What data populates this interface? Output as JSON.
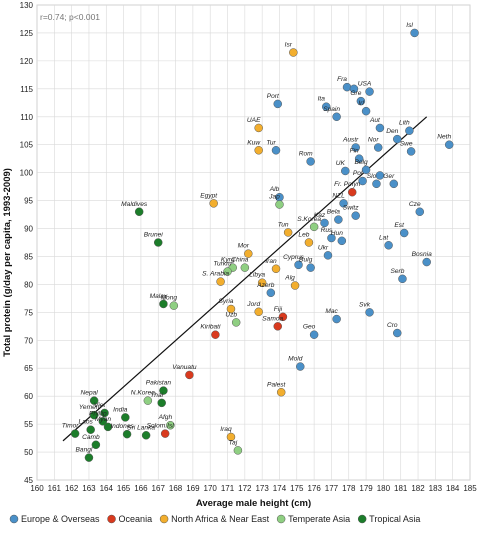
{
  "chart_data": {
    "type": "scatter",
    "title": "",
    "xlabel": "Average male height (cm)",
    "ylabel": "Total protein (g/day per capita, 1993-2009)",
    "annotation": "r=0.74; p<0.001",
    "xlim": [
      160,
      185
    ],
    "ylim": [
      45,
      130
    ],
    "xticks": [
      160,
      161,
      162,
      163,
      164,
      165,
      166,
      167,
      168,
      169,
      170,
      171,
      172,
      173,
      174,
      175,
      176,
      177,
      178,
      179,
      180,
      181,
      182,
      183,
      184,
      185
    ],
    "yticks": [
      45,
      50,
      55,
      60,
      65,
      70,
      75,
      80,
      85,
      90,
      95,
      100,
      105,
      110,
      115,
      120,
      125,
      130
    ],
    "grid": true,
    "legend_position": "bottom",
    "trendline": {
      "x": [
        161.5,
        182.5
      ],
      "y": [
        52,
        110
      ]
    },
    "series": [
      {
        "name": "Europe & Overseas",
        "color": "#4a90c8",
        "points": [
          {
            "x": 181.8,
            "y": 125,
            "label": "Isl"
          },
          {
            "x": 177.9,
            "y": 115.3,
            "label": "Fra"
          },
          {
            "x": 178.3,
            "y": 115,
            "label": ""
          },
          {
            "x": 179.2,
            "y": 114.5,
            "label": "USA"
          },
          {
            "x": 176.7,
            "y": 111.8,
            "label": "Ita"
          },
          {
            "x": 178.7,
            "y": 112.8,
            "label": "Gre"
          },
          {
            "x": 179,
            "y": 111,
            "label": "Irl"
          },
          {
            "x": 177.3,
            "y": 110,
            "label": "Spain"
          },
          {
            "x": 173.9,
            "y": 112.3,
            "label": "Port"
          },
          {
            "x": 179.8,
            "y": 108,
            "label": "Aut"
          },
          {
            "x": 180.8,
            "y": 106,
            "label": "Den"
          },
          {
            "x": 181.5,
            "y": 107.5,
            "label": "Lith"
          },
          {
            "x": 178.4,
            "y": 104.5,
            "label": "Austr"
          },
          {
            "x": 179.7,
            "y": 104.5,
            "label": "Nor"
          },
          {
            "x": 181.6,
            "y": 103.8,
            "label": "Swe"
          },
          {
            "x": 183.8,
            "y": 105,
            "label": "Neth"
          },
          {
            "x": 173.8,
            "y": 104,
            "label": "Tur"
          },
          {
            "x": 175.8,
            "y": 102,
            "label": "Rom"
          },
          {
            "x": 178.6,
            "y": 102.5,
            "label": "Fin"
          },
          {
            "x": 177.8,
            "y": 100.3,
            "label": "UK"
          },
          {
            "x": 179,
            "y": 100.5,
            "label": "Belg"
          },
          {
            "x": 179.8,
            "y": 99.5,
            "label": ""
          },
          {
            "x": 178.8,
            "y": 98.5,
            "label": "Pol"
          },
          {
            "x": 179.6,
            "y": 98,
            "label": "Slo"
          },
          {
            "x": 180.6,
            "y": 98,
            "label": "Ger"
          },
          {
            "x": 174,
            "y": 95.6,
            "label": "Alb"
          },
          {
            "x": 177.7,
            "y": 94.5,
            "label": "NZL"
          },
          {
            "x": 182.1,
            "y": 93,
            "label": "Cze"
          },
          {
            "x": 177.4,
            "y": 91.6,
            "label": "Bela"
          },
          {
            "x": 178.4,
            "y": 92.3,
            "label": "Switz"
          },
          {
            "x": 176.6,
            "y": 91,
            "label": "Kaz"
          },
          {
            "x": 177,
            "y": 88.3,
            "label": "Rus"
          },
          {
            "x": 181.2,
            "y": 89.2,
            "label": "Est"
          },
          {
            "x": 177.6,
            "y": 87.8,
            "label": "Hun"
          },
          {
            "x": 175.1,
            "y": 83.5,
            "label": "Cyprus"
          },
          {
            "x": 175.8,
            "y": 83,
            "label": "Bulg"
          },
          {
            "x": 176.8,
            "y": 85.2,
            "label": "Ukr"
          },
          {
            "x": 180.3,
            "y": 87,
            "label": "Lat"
          },
          {
            "x": 182.5,
            "y": 84,
            "label": "Bosnia"
          },
          {
            "x": 181.1,
            "y": 81,
            "label": "Serb"
          },
          {
            "x": 173.5,
            "y": 78.5,
            "label": "Azerb"
          },
          {
            "x": 177.3,
            "y": 73.8,
            "label": "Mac"
          },
          {
            "x": 179.2,
            "y": 75,
            "label": "Svk"
          },
          {
            "x": 176,
            "y": 71,
            "label": "Geo"
          },
          {
            "x": 180.8,
            "y": 71.3,
            "label": "Cro"
          },
          {
            "x": 175.2,
            "y": 65.3,
            "label": "Mold"
          }
        ]
      },
      {
        "name": "Oceania",
        "color": "#d93a1e",
        "points": [
          {
            "x": 178.2,
            "y": 96.5,
            "label": "Fr. Polyn"
          },
          {
            "x": 174.2,
            "y": 74.2,
            "label": "Fiji"
          },
          {
            "x": 173.9,
            "y": 72.5,
            "label": "Samoa"
          },
          {
            "x": 170.3,
            "y": 71,
            "label": "Kiribati"
          },
          {
            "x": 168.8,
            "y": 63.8,
            "label": "Vanuatu"
          },
          {
            "x": 167.4,
            "y": 53.3,
            "label": "Solom.Isl"
          }
        ]
      },
      {
        "name": "North Africa & Near East",
        "color": "#f2ae2e",
        "points": [
          {
            "x": 174.8,
            "y": 121.5,
            "label": "Isr"
          },
          {
            "x": 172.8,
            "y": 108,
            "label": "UAE"
          },
          {
            "x": 172.8,
            "y": 104,
            "label": "Kuw"
          },
          {
            "x": 170.2,
            "y": 94.5,
            "label": "Egypt"
          },
          {
            "x": 174.5,
            "y": 89.3,
            "label": "Tun"
          },
          {
            "x": 172.2,
            "y": 85.5,
            "label": "Mor"
          },
          {
            "x": 175.7,
            "y": 87.5,
            "label": "Leb"
          },
          {
            "x": 173.8,
            "y": 82.8,
            "label": "Iran"
          },
          {
            "x": 170.6,
            "y": 80.5,
            "label": "S. Arabia"
          },
          {
            "x": 173,
            "y": 80.3,
            "label": "Libya"
          },
          {
            "x": 174.9,
            "y": 79.8,
            "label": "Alg"
          },
          {
            "x": 171.2,
            "y": 75.6,
            "label": "Syria"
          },
          {
            "x": 172.8,
            "y": 75.1,
            "label": "Jord"
          },
          {
            "x": 174.1,
            "y": 60.7,
            "label": "Palest"
          },
          {
            "x": 171.2,
            "y": 52.7,
            "label": "Iraq"
          }
        ]
      },
      {
        "name": "Temperate Asia",
        "color": "#8fcf82",
        "points": [
          {
            "x": 174,
            "y": 94.3,
            "label": "Jap"
          },
          {
            "x": 176,
            "y": 90.3,
            "label": "S.Korea"
          },
          {
            "x": 171.3,
            "y": 83,
            "label": "Kyrg"
          },
          {
            "x": 171,
            "y": 82.3,
            "label": "Turkm"
          },
          {
            "x": 172,
            "y": 83,
            "label": "China"
          },
          {
            "x": 167.9,
            "y": 76.2,
            "label": "Mong"
          },
          {
            "x": 171.5,
            "y": 73.2,
            "label": "Uzb"
          },
          {
            "x": 166.4,
            "y": 59.2,
            "label": "N.Korea"
          },
          {
            "x": 167.7,
            "y": 54.8,
            "label": "Afgh"
          },
          {
            "x": 171.6,
            "y": 50.3,
            "label": "Taj"
          }
        ]
      },
      {
        "name": "Tropical Asia",
        "color": "#1c7d2a",
        "points": [
          {
            "x": 165.9,
            "y": 93,
            "label": "Maldives"
          },
          {
            "x": 167,
            "y": 87.5,
            "label": "Brunei"
          },
          {
            "x": 167.3,
            "y": 76.5,
            "label": "Malay"
          },
          {
            "x": 167.3,
            "y": 61,
            "label": "Pakistan"
          },
          {
            "x": 167.2,
            "y": 58.8,
            "label": "Thai"
          },
          {
            "x": 165.1,
            "y": 56.2,
            "label": "India"
          },
          {
            "x": 163.3,
            "y": 59.2,
            "label": "Nepal"
          },
          {
            "x": 163.9,
            "y": 57,
            "label": "Viet"
          },
          {
            "x": 163.3,
            "y": 56.6,
            "label": "Yemen"
          },
          {
            "x": 163.8,
            "y": 55.5,
            "label": "Phillip"
          },
          {
            "x": 164.1,
            "y": 54.5,
            "label": "Myan"
          },
          {
            "x": 163.1,
            "y": 54,
            "label": "Laos"
          },
          {
            "x": 165.2,
            "y": 53.2,
            "label": "Indones"
          },
          {
            "x": 166.3,
            "y": 53,
            "label": "Sri Lanka"
          },
          {
            "x": 162.2,
            "y": 53.3,
            "label": "Timor"
          },
          {
            "x": 163.4,
            "y": 51.3,
            "label": "Camb"
          },
          {
            "x": 163,
            "y": 49,
            "label": "Bangl"
          }
        ]
      }
    ]
  }
}
